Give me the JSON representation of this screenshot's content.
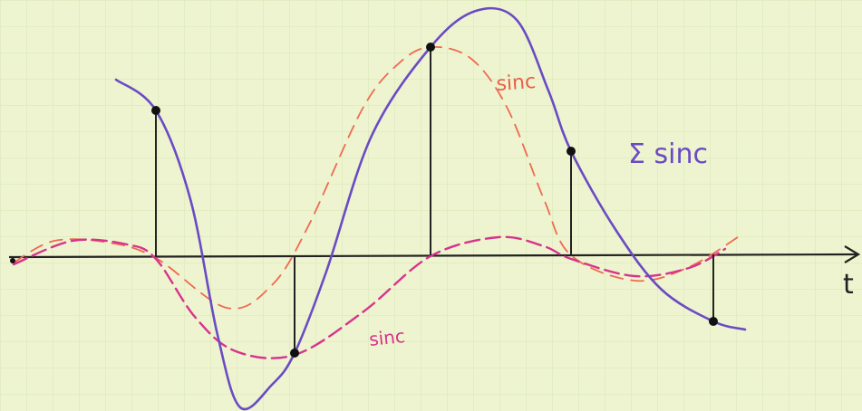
{
  "labels": {
    "red_curve": "sinc",
    "magenta_curve": "sinc",
    "sum_curve": "Σ sinc",
    "axis": "t"
  }
}
